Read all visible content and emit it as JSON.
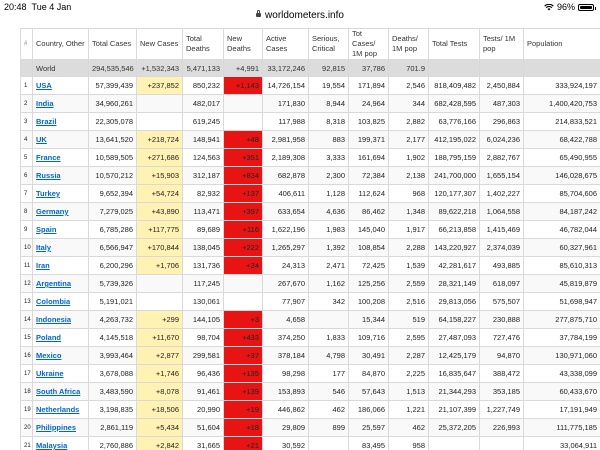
{
  "status": {
    "time": "20:48",
    "date": "Tue 4 Jan",
    "url": "worldometers.info",
    "battery": "96%"
  },
  "headers": {
    "idx": "#",
    "country": "Country, Other",
    "total_cases": "Total Cases",
    "new_cases": "New Cases",
    "total_deaths": "Total Deaths",
    "new_deaths": "New Deaths",
    "active_cases": "Active Cases",
    "serious": "Serious, Critical",
    "cases_per_m": "Tot Cases/ 1M pop",
    "deaths_per_m": "Deaths/ 1M pop",
    "total_tests": "Total Tests",
    "tests_per_m": "Tests/ 1M pop",
    "population": "Population"
  },
  "world": {
    "country": "World",
    "total_cases": "294,535,546",
    "new_cases": "+1,532,343",
    "total_deaths": "5,471,133",
    "new_deaths": "+4,991",
    "active_cases": "33,172,246",
    "serious": "92,815",
    "cases_per_m": "37,786",
    "deaths_per_m": "701.9",
    "total_tests": "",
    "tests_per_m": "",
    "population": ""
  },
  "rows": [
    {
      "idx": "1",
      "country": "USA",
      "total_cases": "57,399,439",
      "new_cases": "+237,852",
      "total_deaths": "850,232",
      "new_deaths": "+1,143",
      "active_cases": "14,726,154",
      "serious": "19,554",
      "cases_per_m": "171,894",
      "deaths_per_m": "2,546",
      "total_tests": "818,409,482",
      "tests_per_m": "2,450,884",
      "population": "333,924,197"
    },
    {
      "idx": "2",
      "country": "India",
      "total_cases": "34,960,261",
      "new_cases": "",
      "total_deaths": "482,017",
      "new_deaths": "",
      "active_cases": "171,830",
      "serious": "8,944",
      "cases_per_m": "24,964",
      "deaths_per_m": "344",
      "total_tests": "682,428,595",
      "tests_per_m": "487,303",
      "population": "1,400,420,753"
    },
    {
      "idx": "3",
      "country": "Brazil",
      "total_cases": "22,305,078",
      "new_cases": "",
      "total_deaths": "619,245",
      "new_deaths": "",
      "active_cases": "117,988",
      "serious": "8,318",
      "cases_per_m": "103,825",
      "deaths_per_m": "2,882",
      "total_tests": "63,776,166",
      "tests_per_m": "296,863",
      "population": "214,833,521"
    },
    {
      "idx": "4",
      "country": "UK",
      "total_cases": "13,641,520",
      "new_cases": "+218,724",
      "total_deaths": "148,941",
      "new_deaths": "+48",
      "active_cases": "2,981,958",
      "serious": "883",
      "cases_per_m": "199,371",
      "deaths_per_m": "2,177",
      "total_tests": "412,195,022",
      "tests_per_m": "6,024,236",
      "population": "68,422,788"
    },
    {
      "idx": "5",
      "country": "France",
      "total_cases": "10,589,505",
      "new_cases": "+271,686",
      "total_deaths": "124,563",
      "new_deaths": "+351",
      "active_cases": "2,189,308",
      "serious": "3,333",
      "cases_per_m": "161,694",
      "deaths_per_m": "1,902",
      "total_tests": "188,795,159",
      "tests_per_m": "2,882,767",
      "population": "65,490,955"
    },
    {
      "idx": "6",
      "country": "Russia",
      "total_cases": "10,570,212",
      "new_cases": "+15,903",
      "total_deaths": "312,187",
      "new_deaths": "+834",
      "active_cases": "682,878",
      "serious": "2,300",
      "cases_per_m": "72,384",
      "deaths_per_m": "2,138",
      "total_tests": "241,700,000",
      "tests_per_m": "1,655,154",
      "population": "146,028,675"
    },
    {
      "idx": "7",
      "country": "Turkey",
      "total_cases": "9,652,394",
      "new_cases": "+54,724",
      "total_deaths": "82,932",
      "new_deaths": "+137",
      "active_cases": "406,611",
      "serious": "1,128",
      "cases_per_m": "112,624",
      "deaths_per_m": "968",
      "total_tests": "120,177,307",
      "tests_per_m": "1,402,227",
      "population": "85,704,606"
    },
    {
      "idx": "8",
      "country": "Germany",
      "total_cases": "7,279,025",
      "new_cases": "+43,890",
      "total_deaths": "113,471",
      "new_deaths": "+397",
      "active_cases": "633,654",
      "serious": "4,636",
      "cases_per_m": "86,462",
      "deaths_per_m": "1,348",
      "total_tests": "89,622,218",
      "tests_per_m": "1,064,558",
      "population": "84,187,242"
    },
    {
      "idx": "9",
      "country": "Spain",
      "total_cases": "6,785,286",
      "new_cases": "+117,775",
      "total_deaths": "89,689",
      "new_deaths": "+116",
      "active_cases": "1,622,196",
      "serious": "1,983",
      "cases_per_m": "145,040",
      "deaths_per_m": "1,917",
      "total_tests": "66,213,858",
      "tests_per_m": "1,415,469",
      "population": "46,782,044"
    },
    {
      "idx": "10",
      "country": "Italy",
      "total_cases": "6,566,947",
      "new_cases": "+170,844",
      "total_deaths": "138,045",
      "new_deaths": "+222",
      "active_cases": "1,265,297",
      "serious": "1,392",
      "cases_per_m": "108,854",
      "deaths_per_m": "2,288",
      "total_tests": "143,220,927",
      "tests_per_m": "2,374,039",
      "population": "60,327,961"
    },
    {
      "idx": "11",
      "country": "Iran",
      "total_cases": "6,200,296",
      "new_cases": "+1,706",
      "total_deaths": "131,736",
      "new_deaths": "+34",
      "active_cases": "24,313",
      "serious": "2,471",
      "cases_per_m": "72,425",
      "deaths_per_m": "1,539",
      "total_tests": "42,281,617",
      "tests_per_m": "493,885",
      "population": "85,610,313"
    },
    {
      "idx": "12",
      "country": "Argentina",
      "total_cases": "5,739,326",
      "new_cases": "",
      "total_deaths": "117,245",
      "new_deaths": "",
      "active_cases": "267,670",
      "serious": "1,162",
      "cases_per_m": "125,256",
      "deaths_per_m": "2,559",
      "total_tests": "28,321,149",
      "tests_per_m": "618,097",
      "population": "45,819,879"
    },
    {
      "idx": "13",
      "country": "Colombia",
      "total_cases": "5,191,021",
      "new_cases": "",
      "total_deaths": "130,061",
      "new_deaths": "",
      "active_cases": "77,907",
      "serious": "342",
      "cases_per_m": "100,208",
      "deaths_per_m": "2,516",
      "total_tests": "29,813,056",
      "tests_per_m": "575,507",
      "population": "51,698,947"
    },
    {
      "idx": "14",
      "country": "Indonesia",
      "total_cases": "4,263,732",
      "new_cases": "+299",
      "total_deaths": "144,105",
      "new_deaths": "+3",
      "active_cases": "4,658",
      "serious": "",
      "cases_per_m": "15,344",
      "deaths_per_m": "519",
      "total_tests": "64,158,227",
      "tests_per_m": "230,888",
      "population": "277,875,710"
    },
    {
      "idx": "15",
      "country": "Poland",
      "total_cases": "4,145,518",
      "new_cases": "+11,670",
      "total_deaths": "98,704",
      "new_deaths": "+433",
      "active_cases": "374,250",
      "serious": "1,833",
      "cases_per_m": "109,716",
      "deaths_per_m": "2,595",
      "total_tests": "27,487,093",
      "tests_per_m": "727,476",
      "population": "37,784,199"
    },
    {
      "idx": "16",
      "country": "Mexico",
      "total_cases": "3,993,464",
      "new_cases": "+2,877",
      "total_deaths": "299,581",
      "new_deaths": "+37",
      "active_cases": "378,184",
      "serious": "4,798",
      "cases_per_m": "30,491",
      "deaths_per_m": "2,287",
      "total_tests": "12,425,179",
      "tests_per_m": "94,870",
      "population": "130,971,060"
    },
    {
      "idx": "17",
      "country": "Ukraine",
      "total_cases": "3,678,088",
      "new_cases": "+1,746",
      "total_deaths": "96,436",
      "new_deaths": "+135",
      "active_cases": "98,298",
      "serious": "177",
      "cases_per_m": "84,870",
      "deaths_per_m": "2,225",
      "total_tests": "16,835,647",
      "tests_per_m": "388,472",
      "population": "43,338,099"
    },
    {
      "idx": "18",
      "country": "South Africa",
      "total_cases": "3,483,590",
      "new_cases": "+8,078",
      "total_deaths": "91,461",
      "new_deaths": "+139",
      "active_cases": "153,893",
      "serious": "546",
      "cases_per_m": "57,643",
      "deaths_per_m": "1,513",
      "total_tests": "21,344,293",
      "tests_per_m": "353,185",
      "population": "60,433,670"
    },
    {
      "idx": "19",
      "country": "Netherlands",
      "total_cases": "3,198,835",
      "new_cases": "+18,506",
      "total_deaths": "20,990",
      "new_deaths": "+19",
      "active_cases": "446,862",
      "serious": "462",
      "cases_per_m": "186,066",
      "deaths_per_m": "1,221",
      "total_tests": "21,107,399",
      "tests_per_m": "1,227,749",
      "population": "17,191,949"
    },
    {
      "idx": "20",
      "country": "Philippines",
      "total_cases": "2,861,119",
      "new_cases": "+5,434",
      "total_deaths": "51,604",
      "new_deaths": "+18",
      "active_cases": "29,809",
      "serious": "899",
      "cases_per_m": "25,597",
      "deaths_per_m": "462",
      "total_tests": "25,372,205",
      "tests_per_m": "226,993",
      "population": "111,775,185"
    },
    {
      "idx": "21",
      "country": "Malaysia",
      "total_cases": "2,760,886",
      "new_cases": "+2,842",
      "total_deaths": "31,665",
      "new_deaths": "+21",
      "active_cases": "30,592",
      "serious": "",
      "cases_per_m": "83,495",
      "deaths_per_m": "958",
      "total_tests": "",
      "tests_per_m": "",
      "population": "33,064,911"
    }
  ]
}
